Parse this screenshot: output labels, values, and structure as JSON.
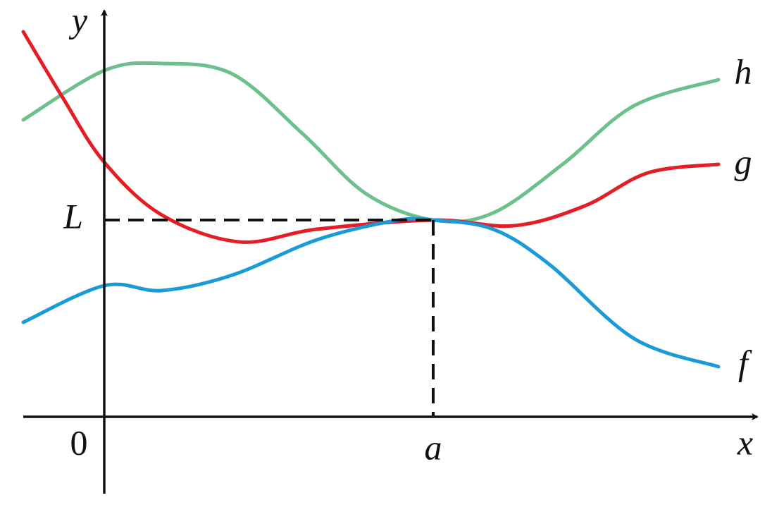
{
  "axes": {
    "x_label": "x",
    "y_label": "y",
    "origin_label": "0"
  },
  "marks": {
    "limit_label": "L",
    "point_label": "a"
  },
  "curves": [
    {
      "label": "h",
      "color": "#6cc08b"
    },
    {
      "label": "g",
      "color": "#e41e26"
    },
    {
      "label": "f",
      "color": "#1a9ad6"
    }
  ]
}
